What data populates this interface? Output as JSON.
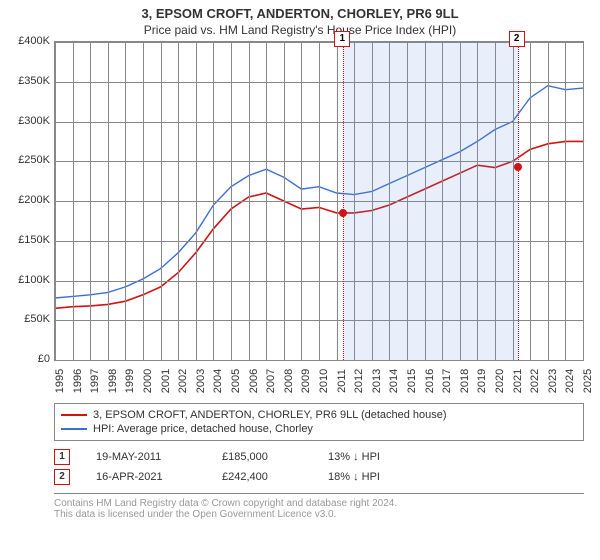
{
  "title": "3, EPSOM CROFT, ANDERTON, CHORLEY, PR6 9LL",
  "subtitle": "Price paid vs. HM Land Registry's House Price Index (HPI)",
  "chart": {
    "type": "line",
    "background_color": "#ffffff",
    "grid_color": "#888888",
    "x": {
      "min": 1995,
      "max": 2025,
      "step": 1
    },
    "y": {
      "min": 0,
      "max": 400000,
      "step": 50000,
      "prefix": "£",
      "suffix": "K",
      "divisor": 1000
    },
    "shade": {
      "from": 2011.38,
      "to": 2021.29,
      "color": "rgba(100,150,220,0.15)"
    },
    "series": [
      {
        "label": "3, EPSOM CROFT, ANDERTON, CHORLEY, PR6 9LL (detached house)",
        "color": "#d11313",
        "width": 1.6,
        "y": [
          65000,
          67000,
          68000,
          70000,
          74000,
          82000,
          92000,
          110000,
          135000,
          165000,
          190000,
          205000,
          210000,
          200000,
          190000,
          192000,
          185000,
          185000,
          188000,
          195000,
          205000,
          215000,
          225000,
          235000,
          245000,
          242000,
          250000,
          265000,
          272000,
          275000,
          275000
        ]
      },
      {
        "label": "HPI: Average price, detached house, Chorley",
        "color": "#3a6fd8",
        "width": 1.4,
        "y": [
          78000,
          80000,
          82000,
          85000,
          92000,
          102000,
          115000,
          135000,
          160000,
          195000,
          218000,
          232000,
          240000,
          230000,
          215000,
          218000,
          210000,
          208000,
          212000,
          222000,
          232000,
          242000,
          252000,
          262000,
          275000,
          290000,
          300000,
          330000,
          345000,
          340000,
          342000
        ]
      }
    ],
    "markers": [
      {
        "num": "1",
        "x": 2011.38,
        "color": "#d11313",
        "point_y": 185000
      },
      {
        "num": "2",
        "x": 2021.29,
        "color": "#d11313",
        "point_y": 242400
      }
    ]
  },
  "legend": [
    {
      "color": "#d11313",
      "label": "3, EPSOM CROFT, ANDERTON, CHORLEY, PR6 9LL (detached house)"
    },
    {
      "color": "#3a6fd8",
      "label": "HPI: Average price, detached house, Chorley"
    }
  ],
  "events": [
    {
      "num": "1",
      "color": "#d11313",
      "date": "19-MAY-2011",
      "price": "£185,000",
      "delta": "13% ↓ HPI"
    },
    {
      "num": "2",
      "color": "#d11313",
      "date": "16-APR-2021",
      "price": "£242,400",
      "delta": "18% ↓ HPI"
    }
  ],
  "footer": {
    "line1": "Contains HM Land Registry data © Crown copyright and database right 2024.",
    "line2": "This data is licensed under the Open Government Licence v3.0."
  }
}
